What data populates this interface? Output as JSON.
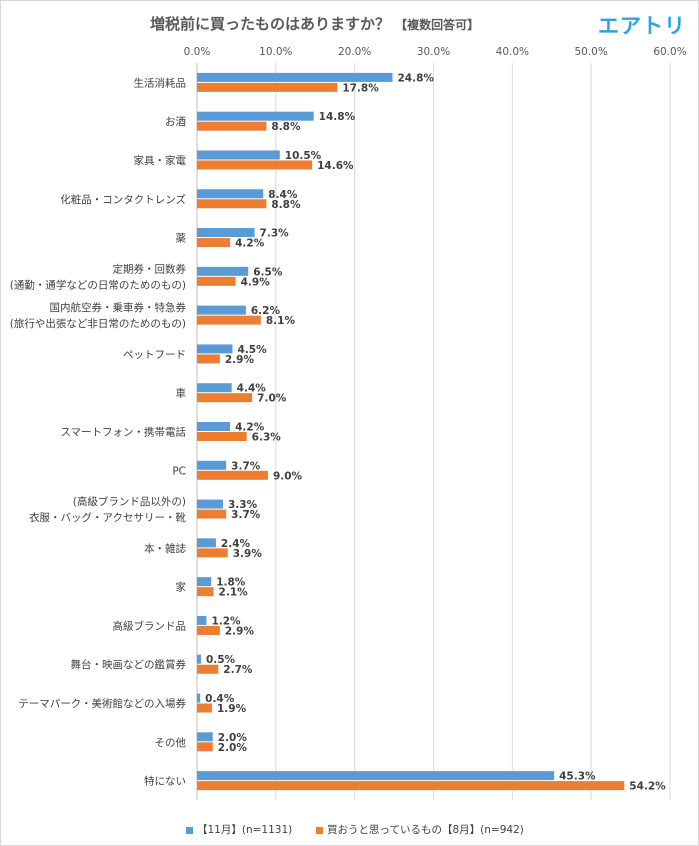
{
  "title": "増税前に買ったものはありますか？",
  "subtitle": "【複数回答可】",
  "brand": "エアトリ",
  "colors": {
    "series1": "#5b9bd5",
    "series2": "#ed7d31",
    "grid": "#d9d9d9",
    "text": "#404040"
  },
  "chart_data": {
    "type": "bar",
    "orientation": "horizontal",
    "xlim": [
      0,
      60
    ],
    "xticks": [
      "0.0%",
      "10.0%",
      "20.0%",
      "30.0%",
      "40.0%",
      "50.0%",
      "60.0%"
    ],
    "grid": true,
    "legend_position": "bottom",
    "categories": [
      [
        "生活消耗品"
      ],
      [
        "お酒"
      ],
      [
        "家具・家電"
      ],
      [
        "化粧品・コンタクトレンズ"
      ],
      [
        "薬"
      ],
      [
        "定期券・回数券",
        "(通勤・通学などの日常のためのもの)"
      ],
      [
        "国内航空券・乗車券・特急券",
        "(旅行や出張など非日常のためのもの)"
      ],
      [
        "ペットフード"
      ],
      [
        "車"
      ],
      [
        "スマートフォン・携帯電話"
      ],
      [
        "PC"
      ],
      [
        "(高級ブランド品以外の)",
        "衣服・バッグ・アクセサリー・靴"
      ],
      [
        "本・雑誌"
      ],
      [
        "家"
      ],
      [
        "高級ブランド品"
      ],
      [
        "舞台・映画などの鑑賞券"
      ],
      [
        "テーマパーク・美術館などの入場券"
      ],
      [
        "その他"
      ],
      [
        "特にない"
      ]
    ],
    "series": [
      {
        "name": "【11月】(n=1131)",
        "values": [
          24.8,
          14.8,
          10.5,
          8.4,
          7.3,
          6.5,
          6.2,
          4.5,
          4.4,
          4.2,
          3.7,
          3.3,
          2.4,
          1.8,
          1.2,
          0.5,
          0.4,
          2.0,
          45.3
        ],
        "labels": [
          "24.8%",
          "14.8%",
          "10.5%",
          "8.4%",
          "7.3%",
          "6.5%",
          "6.2%",
          "4.5%",
          "4.4%",
          "4.2%",
          "3.7%",
          "3.3%",
          "2.4%",
          "1.8%",
          "1.2%",
          "0.5%",
          "0.4%",
          "2.0%",
          "45.3%"
        ]
      },
      {
        "name": "買おうと思っているもの【8月】(n=942)",
        "values": [
          17.8,
          8.8,
          14.6,
          8.8,
          4.2,
          4.9,
          8.1,
          2.9,
          7.0,
          6.3,
          9.0,
          3.7,
          3.9,
          2.1,
          2.9,
          2.7,
          1.9,
          2.0,
          54.2
        ],
        "labels": [
          "17.8%",
          "8.8%",
          "14.6%",
          "8.8%",
          "4.2%",
          "4.9%",
          "8.1%",
          "2.9%",
          "7.0%",
          "6.3%",
          "9.0%",
          "3.7%",
          "3.9%",
          "2.1%",
          "2.9%",
          "2.7%",
          "1.9%",
          "2.0%",
          "54.2%"
        ]
      }
    ]
  }
}
